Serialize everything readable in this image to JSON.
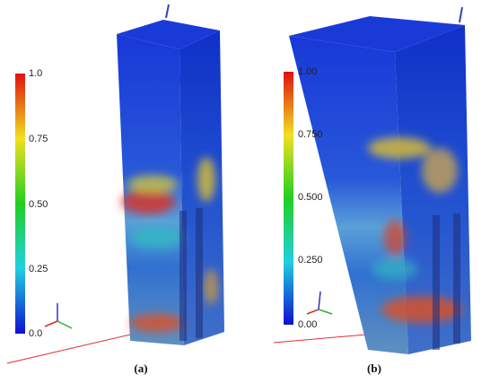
{
  "panels": [
    {
      "label": "(a)",
      "colorbar_ticks": [
        "1.0",
        "0.75",
        "0.50",
        "0.25",
        "0.0"
      ]
    },
    {
      "label": "(b)",
      "colorbar_ticks": [
        "1.00",
        "0.750",
        "0.500",
        "0.250",
        "0.00"
      ]
    }
  ]
}
